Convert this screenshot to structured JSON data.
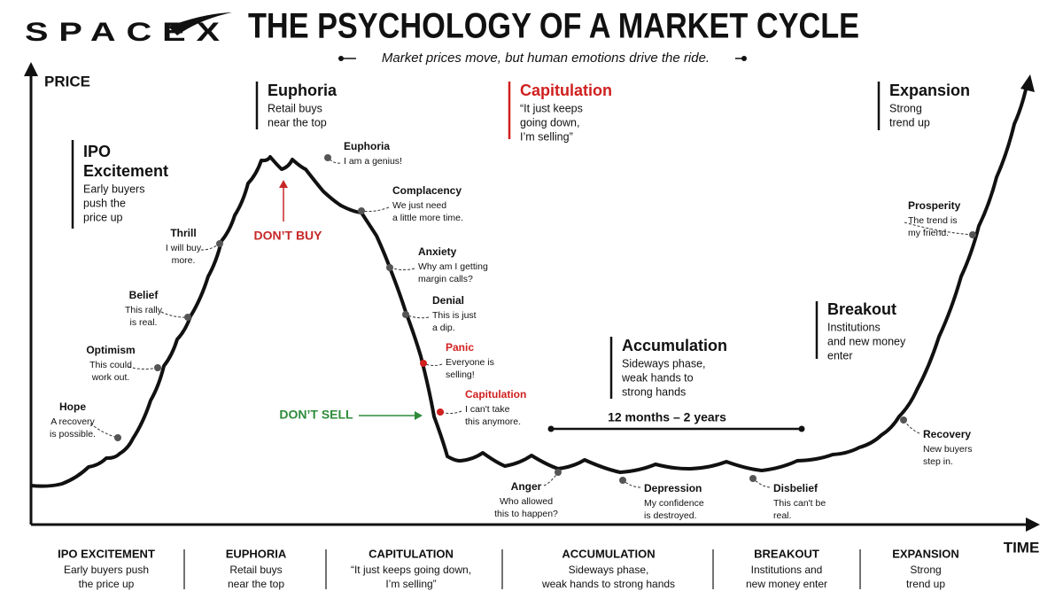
{
  "header": {
    "logo": "SPACEX",
    "title": "THE PSYCHOLOGY OF A MARKET CYCLE",
    "subtitle": "Market prices move, but human emotions drive the ride."
  },
  "axes": {
    "y_label": "PRICE",
    "x_label": "TIME"
  },
  "phases": [
    {
      "title": [
        "IPO",
        "Excitement"
      ],
      "text": [
        "Early buyers",
        "push the",
        "price up"
      ],
      "color": "#111111"
    },
    {
      "title": [
        "Euphoria"
      ],
      "text": [
        "Retail buys",
        "near the top"
      ],
      "color": "#111111"
    },
    {
      "title": [
        "Capitulation"
      ],
      "text": [
        "“It just keeps",
        "going down,",
        "I’m selling”"
      ],
      "color": "#d0201f"
    },
    {
      "title": [
        "Expansion"
      ],
      "text": [
        "Strong",
        "trend up"
      ],
      "color": "#111111"
    },
    {
      "title": [
        "Accumulation"
      ],
      "text": [
        "Sideways phase,",
        "weak hands to",
        "strong hands"
      ],
      "color": "#111111"
    },
    {
      "title": [
        "Breakout"
      ],
      "text": [
        "Institutions",
        "and new money",
        "enter"
      ],
      "color": "#111111"
    }
  ],
  "emotions": [
    {
      "title": "Hope",
      "text": [
        "A recovery",
        "is possible."
      ],
      "color": "#555555"
    },
    {
      "title": "Optimism",
      "text": [
        "This could",
        "work out."
      ],
      "color": "#555555"
    },
    {
      "title": "Belief",
      "text": [
        "This rally",
        "is real."
      ],
      "color": "#555555"
    },
    {
      "title": "Thrill",
      "text": [
        "I will buy",
        "more."
      ],
      "color": "#555555"
    },
    {
      "title": "Euphoria",
      "text": [
        "I am a genius!"
      ],
      "color": "#555555"
    },
    {
      "title": "Complacency",
      "text": [
        "We just need",
        "a little more time."
      ],
      "color": "#555555"
    },
    {
      "title": "Anxiety",
      "text": [
        "Why am I getting",
        "margin calls?"
      ],
      "color": "#555555"
    },
    {
      "title": "Denial",
      "text": [
        "This is just",
        "a dip."
      ],
      "color": "#555555"
    },
    {
      "title": "Panic",
      "text": [
        "Everyone is",
        "selling!"
      ],
      "color": "#d0201f"
    },
    {
      "title": "Capitulation",
      "text": [
        "I can't take",
        "this anymore."
      ],
      "color": "#d0201f"
    },
    {
      "title": "Anger",
      "text": [
        "Who allowed",
        "this to happen?"
      ],
      "color": "#555555"
    },
    {
      "title": "Depression",
      "text": [
        "My confidence",
        "is destroyed."
      ],
      "color": "#555555"
    },
    {
      "title": "Disbelief",
      "text": [
        "This can't be",
        "real."
      ],
      "color": "#555555"
    },
    {
      "title": "Recovery",
      "text": [
        "New buyers",
        "step in."
      ],
      "color": "#555555"
    },
    {
      "title": "Prosperity",
      "text": [
        "The trend is",
        "my friend."
      ],
      "color": "#555555"
    }
  ],
  "annotations": {
    "dont_buy": "DON’T BUY",
    "dont_sell": "DON’T SELL",
    "duration": "12 months – 2 years"
  },
  "footer": [
    {
      "title": "IPO EXCITEMENT",
      "text": [
        "Early buyers push",
        "the price up"
      ]
    },
    {
      "title": "EUPHORIA",
      "text": [
        "Retail buys",
        "near the top"
      ]
    },
    {
      "title": "CAPITULATION",
      "text": [
        "“It just keeps going down,",
        "I’m selling”"
      ]
    },
    {
      "title": "ACCUMULATION",
      "text": [
        "Sideways phase,",
        "weak hands to strong hands"
      ]
    },
    {
      "title": "BREAKOUT",
      "text": [
        "Institutions and",
        "new money enter"
      ]
    },
    {
      "title": "EXPANSION",
      "text": [
        "Strong",
        "trend up"
      ]
    }
  ]
}
